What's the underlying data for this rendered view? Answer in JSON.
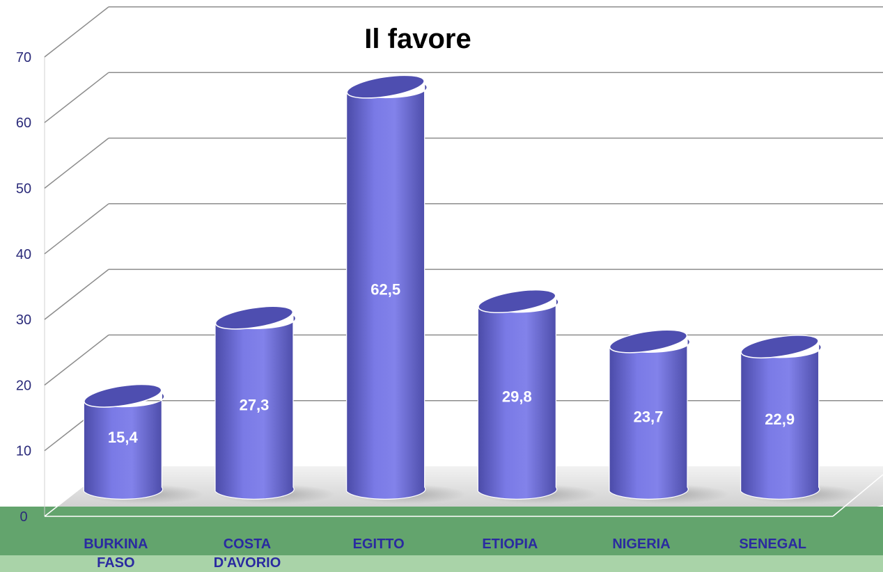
{
  "chart_data": {
    "type": "bar",
    "style": "3d-cylinder",
    "title": "Il favore",
    "categories": [
      "BURKINA FASO",
      "COSTA D'AVORIO",
      "EGITTO",
      "ETIOPIA",
      "NIGERIA",
      "SENEGAL"
    ],
    "category_lines": [
      [
        "BURKINA",
        "FASO"
      ],
      [
        "COSTA",
        "D'AVORIO"
      ],
      [
        "EGITTO"
      ],
      [
        "ETIOPIA"
      ],
      [
        "NIGERIA"
      ],
      [
        "SENEGAL"
      ]
    ],
    "series": [
      {
        "values": [
          15.4,
          27.3,
          62.5,
          29.8,
          23.7,
          22.9
        ],
        "labels": [
          "15,4",
          "27,3",
          "62,5",
          "29,8",
          "23,7",
          "22,9"
        ],
        "color": "#6f6fd8"
      }
    ],
    "ylim": [
      0,
      70
    ],
    "yticks": [
      0,
      10,
      20,
      30,
      40,
      50,
      60,
      70
    ],
    "grid": true,
    "legend": "none",
    "colors": {
      "bar": "#6f6fd8",
      "bar_top": "#4e4eb0",
      "floor_band": "#63a46d",
      "floor_band_light": "#a9d3a8",
      "grid": "#8c8c8c",
      "tick_text": "#2b2b7a",
      "category_text": "#2a2aa0"
    }
  }
}
